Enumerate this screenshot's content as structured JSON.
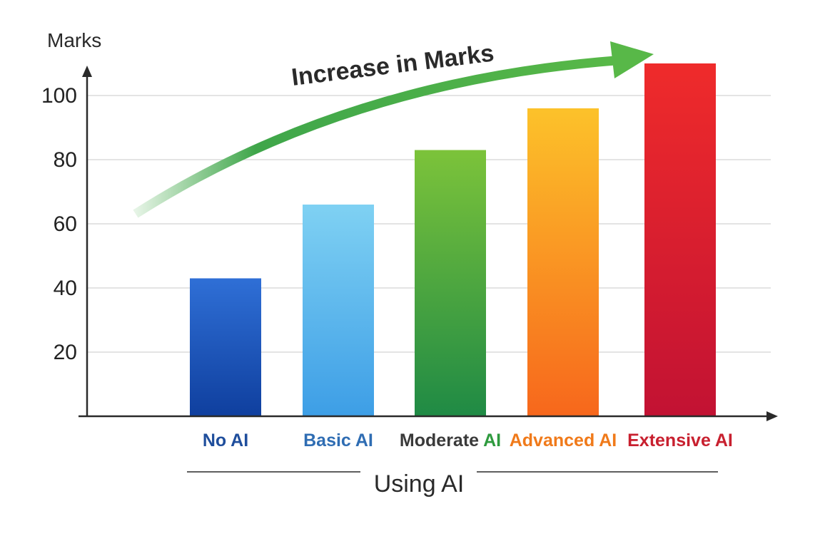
{
  "chart_data": {
    "type": "bar",
    "title": "",
    "ylabel": "Marks",
    "xlabel": "Using AI",
    "annotation": "Increase in Marks",
    "ylim": [
      0,
      117
    ],
    "yticks": [
      20,
      40,
      60,
      80,
      100
    ],
    "grid": true,
    "categories": [
      "No AI",
      "Basic AI",
      "Moderate AI",
      "Advanced AI",
      "Extensive AI"
    ],
    "category_label_parts": [
      [
        {
          "text": "No AI",
          "color": "#1f4e9c"
        }
      ],
      [
        {
          "text": "Basic AI",
          "color": "#2f6db3"
        }
      ],
      [
        {
          "text": "Moderate ",
          "color": "#3a3a3a"
        },
        {
          "text": "AI",
          "color": "#2e9a3e"
        }
      ],
      [
        {
          "text": "Advanced AI",
          "color": "#f07a1a"
        }
      ],
      [
        {
          "text": "Extensive AI",
          "color": "#c8202f"
        }
      ]
    ],
    "values": [
      43,
      66,
      83,
      96,
      110
    ],
    "bar_gradients": [
      [
        "#2f6fd6",
        "#0f3f9e"
      ],
      [
        "#7fd1f3",
        "#3d9ee6"
      ],
      [
        "#7cc33a",
        "#1f8a45"
      ],
      [
        "#fcc22a",
        "#f7671c"
      ],
      [
        "#ef2b2b",
        "#c21233"
      ]
    ],
    "arrow_colors": [
      "#e6f4e6",
      "#3fa64a",
      "#58b848"
    ]
  }
}
